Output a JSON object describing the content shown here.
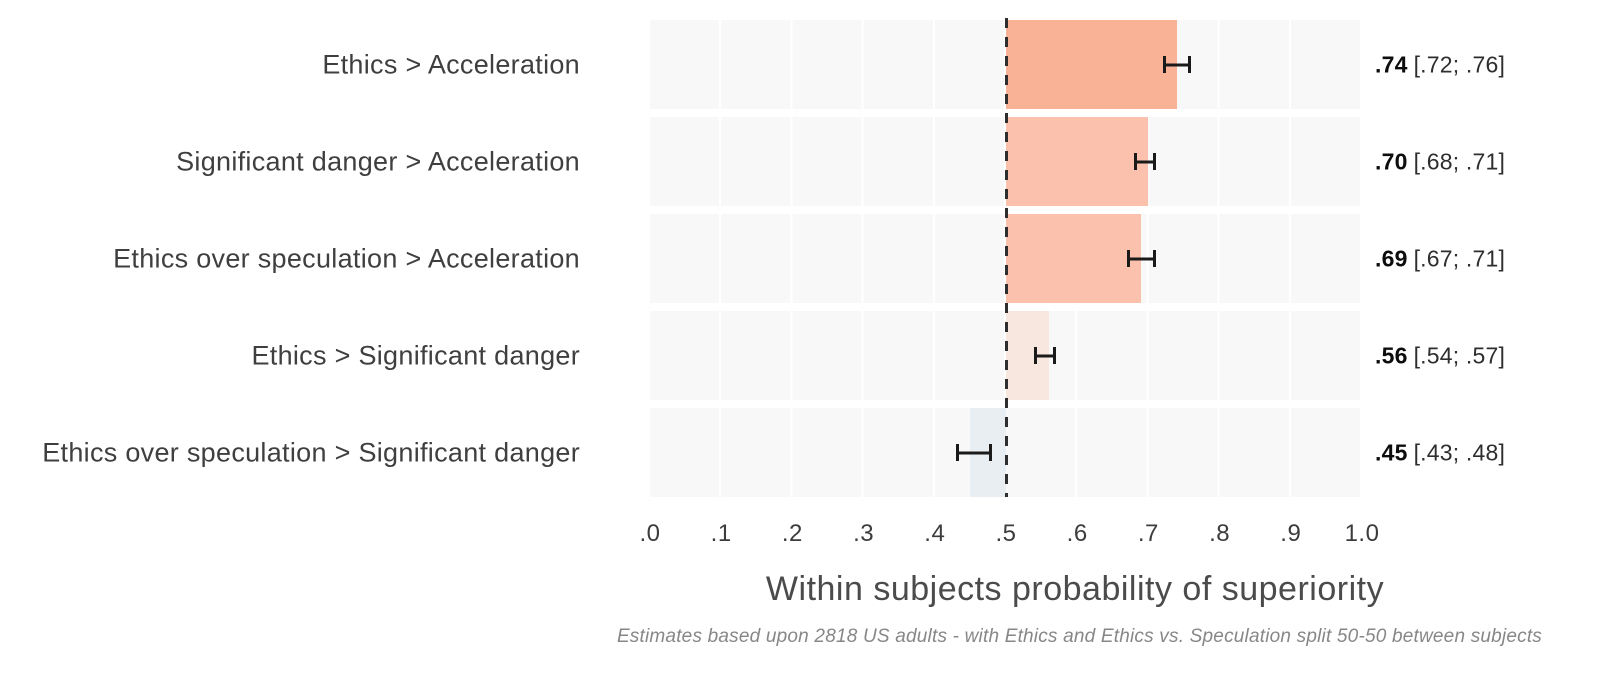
{
  "chart_data": {
    "type": "bar",
    "orientation": "horizontal",
    "title": "",
    "xlabel": "Within subjects probability of superiority",
    "ylabel": "",
    "xlim": [
      0,
      1
    ],
    "baseline": 0.5,
    "reference_line": 0.5,
    "grid": "vertical-bands",
    "x_ticks": [
      ".0",
      ".1",
      ".2",
      ".3",
      ".4",
      ".5",
      ".6",
      ".7",
      ".8",
      ".9",
      "1.0"
    ],
    "x_tick_values": [
      0,
      0.1,
      0.2,
      0.3,
      0.4,
      0.5,
      0.6,
      0.7,
      0.8,
      0.9,
      1.0
    ],
    "caption": "Estimates based upon 2818 US adults - with Ethics and Ethics vs. Speculation split 50-50 between subjects",
    "rows": [
      {
        "label": "Ethics > Acceleration",
        "value": 0.74,
        "ci_low": 0.72,
        "ci_high": 0.76,
        "value_text": ".74",
        "ci_text": "[.72; .76]",
        "bar_color": "#f9b296"
      },
      {
        "label": "Significant danger > Acceleration",
        "value": 0.7,
        "ci_low": 0.68,
        "ci_high": 0.71,
        "value_text": ".70",
        "ci_text": "[.68; .71]",
        "bar_color": "#fbc1ac"
      },
      {
        "label": "Ethics over speculation > Acceleration",
        "value": 0.69,
        "ci_low": 0.67,
        "ci_high": 0.71,
        "value_text": ".69",
        "ci_text": "[.67; .71]",
        "bar_color": "#fbc1ac"
      },
      {
        "label": "Ethics > Significant danger",
        "value": 0.56,
        "ci_low": 0.54,
        "ci_high": 0.57,
        "value_text": ".56",
        "ci_text": "[.54; .57]",
        "bar_color": "#f8e7df"
      },
      {
        "label": "Ethics over speculation > Significant danger",
        "value": 0.45,
        "ci_low": 0.43,
        "ci_high": 0.48,
        "value_text": ".45",
        "ci_text": "[.43; .48]",
        "bar_color": "#e9eef3"
      }
    ],
    "colors": {
      "error_bar": "#1a1a1a",
      "reference_line": "#2e2e2e",
      "panel_band": "#f8f8f9",
      "label_text": "#3f3f3f",
      "tick_text": "#3c3c3c",
      "axis_title_text": "#4b4b4b",
      "caption_text": "#878787",
      "estimate_text": "#0d0d0d"
    }
  }
}
